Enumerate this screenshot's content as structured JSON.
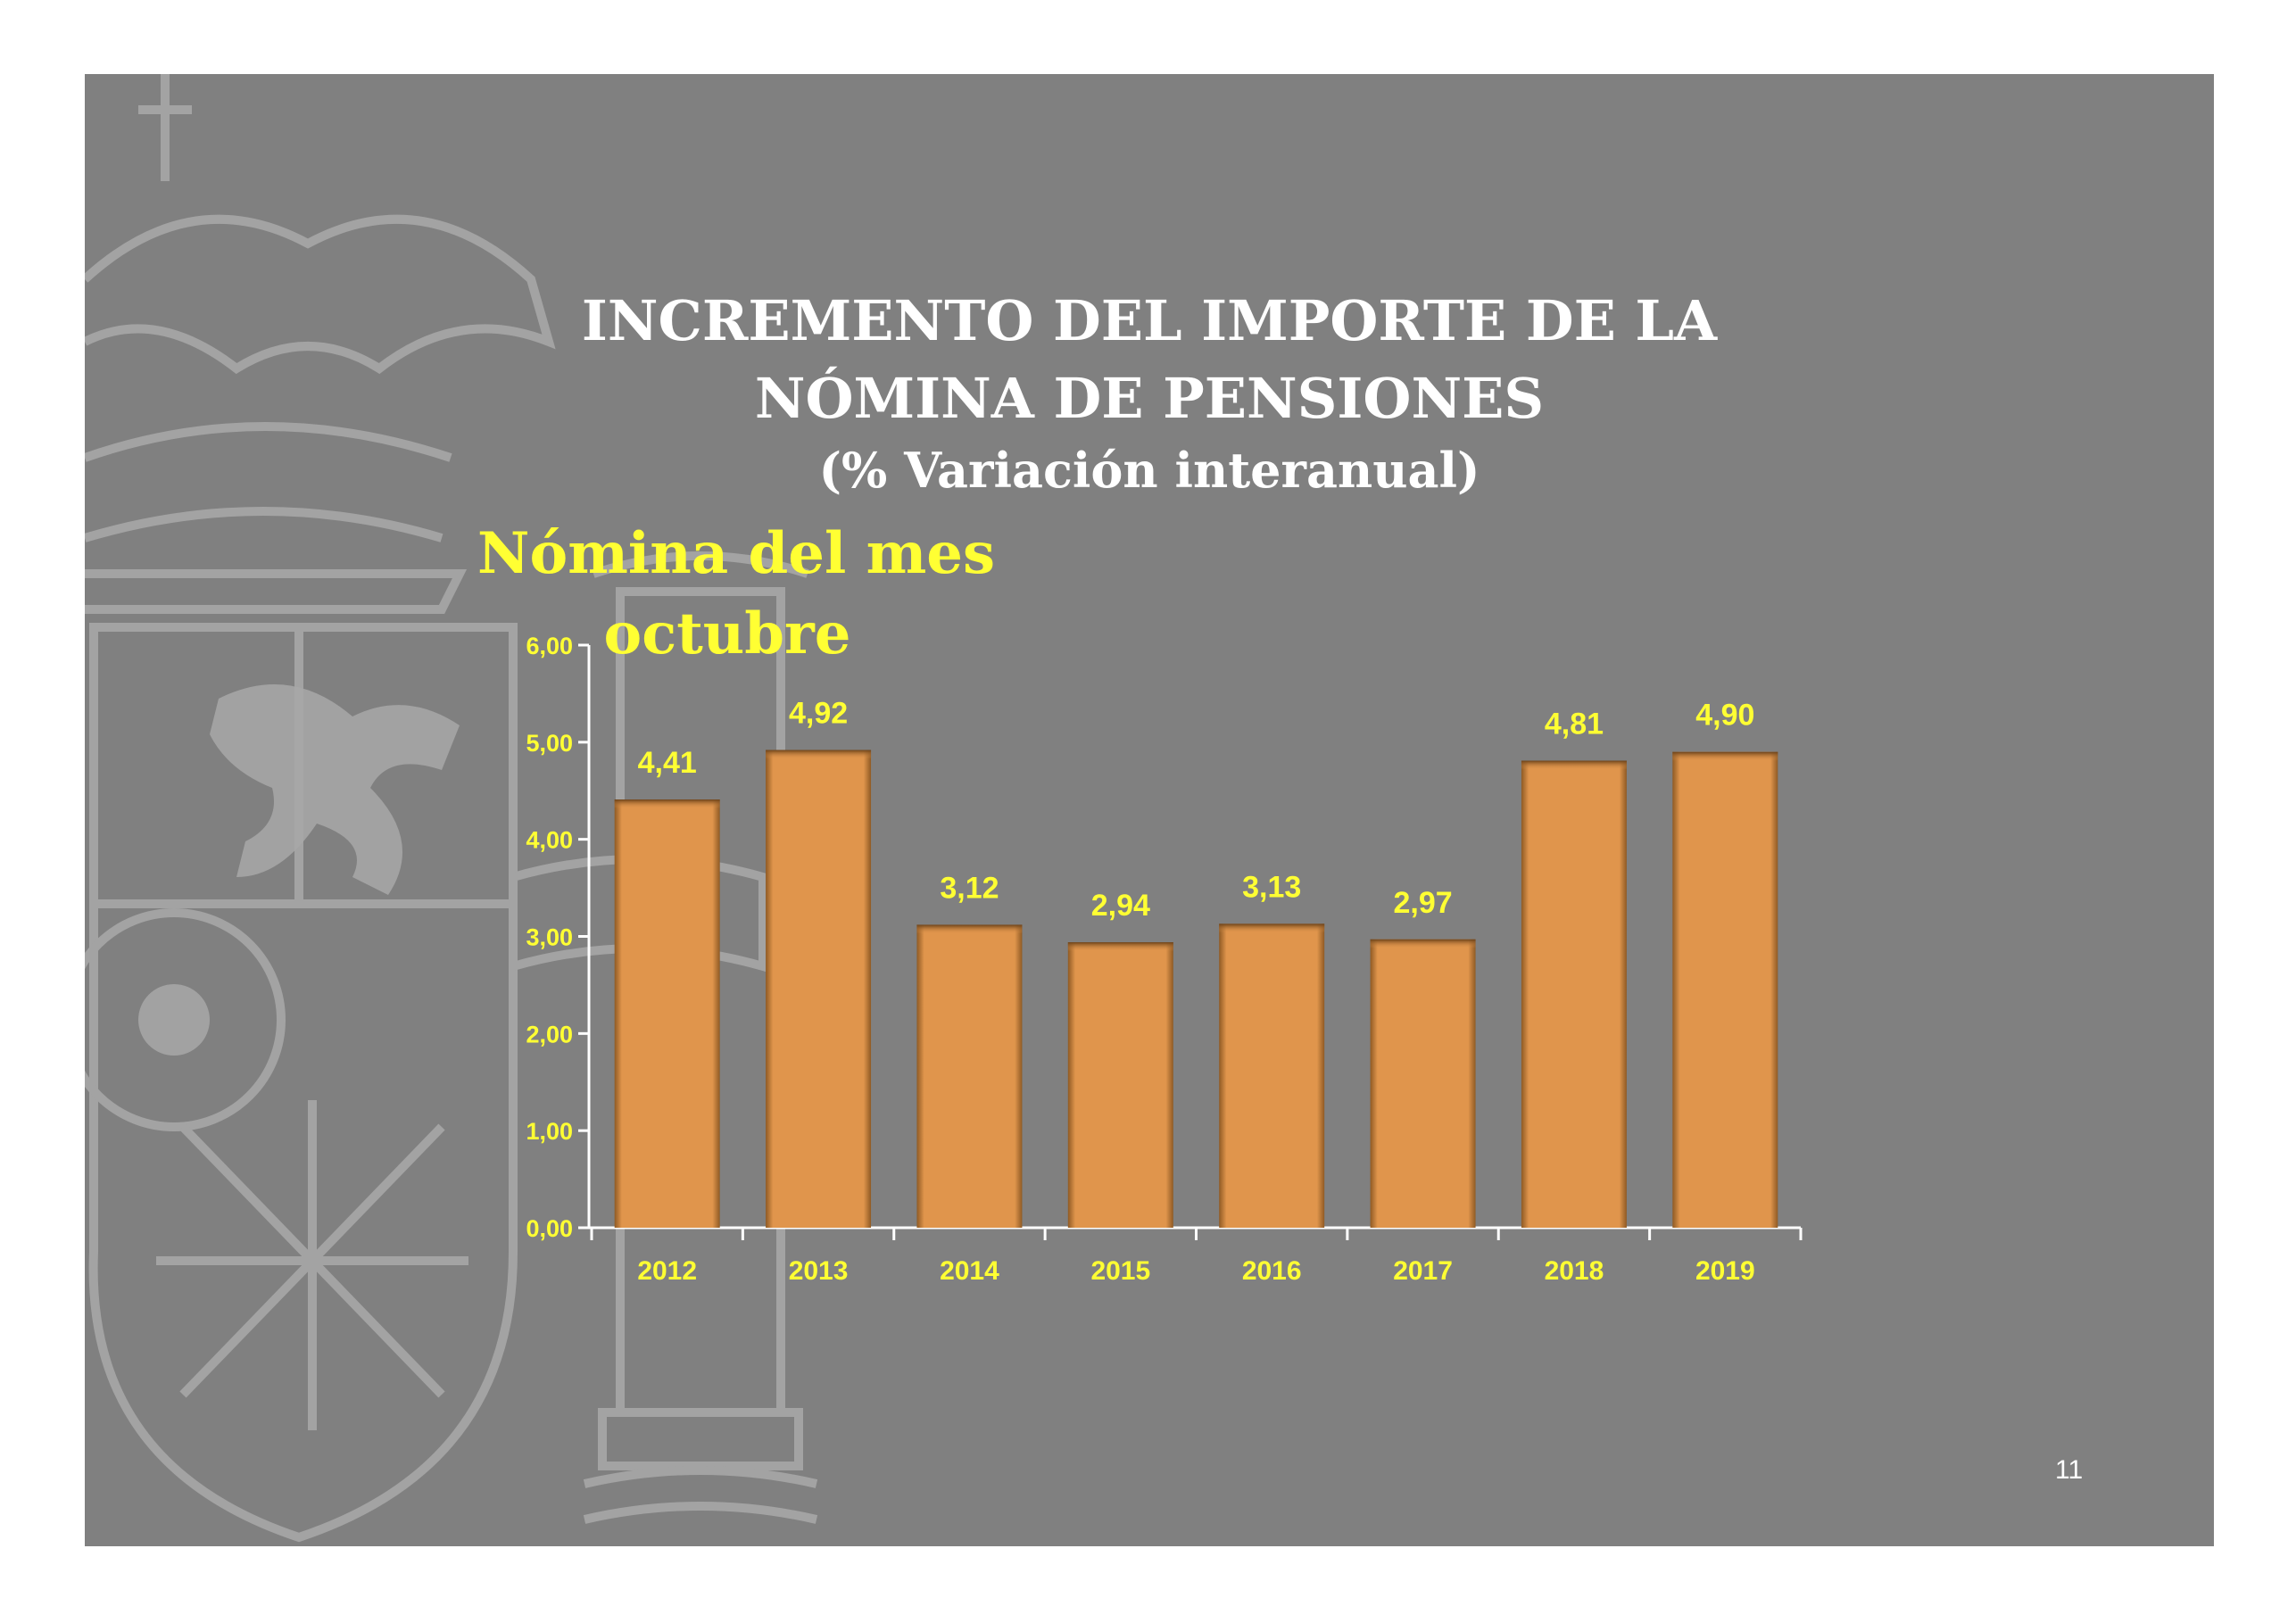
{
  "slide": {
    "title_line1": "INCREMENTO DEL IMPORTE DE LA",
    "title_line2": "NÓMINA DE PENSIONES",
    "title_line3": "(% Variación interanual)",
    "subtitle_line1": "Nómina del mes",
    "subtitle_line2": "octubre",
    "page_number": "11"
  },
  "colors": {
    "background": "#808080",
    "bar": "#E0954C",
    "label": "#FFFF33",
    "title": "#FFFFFF"
  },
  "chart_data": {
    "type": "bar",
    "categories": [
      "2012",
      "2013",
      "2014",
      "2015",
      "2016",
      "2017",
      "2018",
      "2019"
    ],
    "values": [
      4.41,
      4.92,
      3.12,
      2.94,
      3.13,
      2.97,
      4.81,
      4.9
    ],
    "data_labels": [
      "4,41",
      "4,92",
      "3,12",
      "2,94",
      "3,13",
      "2,97",
      "4,81",
      "4,90"
    ],
    "y_ticks": [
      "0,00",
      "1,00",
      "2,00",
      "3,00",
      "4,00",
      "5,00",
      "6,00"
    ],
    "ylim": [
      0,
      6
    ],
    "title": "Nómina del mes octubre",
    "xlabel": "",
    "ylabel": "",
    "grid": false,
    "legend": "none"
  }
}
